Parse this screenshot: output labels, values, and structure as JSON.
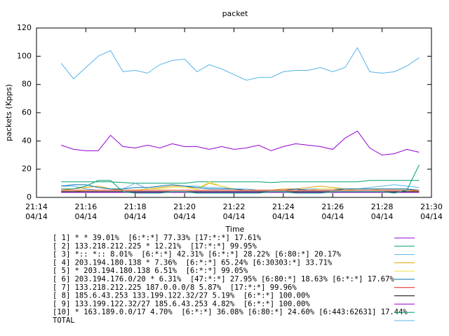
{
  "chart_data": {
    "type": "line",
    "title": "packet",
    "y_label": "packets (Kpps)",
    "x_label": "Time",
    "x": [
      "21:15:00",
      "21:15:30",
      "21:16:00",
      "21:16:30",
      "21:17:00",
      "21:17:30",
      "21:18:00",
      "21:18:30",
      "21:19:00",
      "21:19:30",
      "21:20:00",
      "21:20:30",
      "21:21:00",
      "21:21:30",
      "21:22:00",
      "21:22:30",
      "21:23:00",
      "21:23:30",
      "21:24:00",
      "21:24:30",
      "21:25:00",
      "21:25:30",
      "21:26:00",
      "21:26:30",
      "21:27:00",
      "21:27:30",
      "21:28:00",
      "21:28:30",
      "21:29:00",
      "21:29:30"
    ],
    "xlim": [
      "21:14:00",
      "21:30:00"
    ],
    "xticks": [
      {
        "value": "21:14:00",
        "label": "21:14",
        "date": "04/14"
      },
      {
        "value": "21:16:00",
        "label": "21:16",
        "date": "04/14"
      },
      {
        "value": "21:18:00",
        "label": "21:18",
        "date": "04/14"
      },
      {
        "value": "21:20:00",
        "label": "21:20",
        "date": "04/14"
      },
      {
        "value": "21:22:00",
        "label": "21:22",
        "date": "04/14"
      },
      {
        "value": "21:24:00",
        "label": "21:24",
        "date": "04/14"
      },
      {
        "value": "21:26:00",
        "label": "21:26",
        "date": "04/14"
      },
      {
        "value": "21:28:00",
        "label": "21:28",
        "date": "04/14"
      },
      {
        "value": "21:30:00",
        "label": "21:30",
        "date": "04/14"
      }
    ],
    "ylim": [
      0,
      120
    ],
    "yticks": [
      0,
      20,
      40,
      60,
      80,
      100,
      120
    ],
    "grid": false,
    "series": [
      {
        "name": "[ 1] * * 39.01%  [6:*:*] 77.33% [17:*:*] 17.61%",
        "color": "#9400d3",
        "values": [
          37,
          34,
          33,
          33,
          44,
          36,
          35,
          37,
          35,
          38,
          36,
          36,
          34,
          36,
          34,
          35,
          37,
          33,
          36,
          38,
          37,
          36,
          34,
          42,
          47,
          35,
          30,
          31,
          34,
          32
        ]
      },
      {
        "name": "[ 2] 133.218.212.225 * 12.21%  [17:*:*] 99.95%",
        "color": "#009e73",
        "values": [
          11,
          11,
          11,
          11,
          11,
          10.5,
          10,
          10,
          10,
          10,
          10,
          11,
          11,
          11,
          11,
          11,
          11,
          10.5,
          11,
          11,
          11,
          11,
          11,
          11,
          11,
          12,
          12,
          12,
          12,
          12
        ]
      },
      {
        "name": "[ 3] *:: *:: 8.01%  [6:*:*] 42.31% [6:*:*] 28.22% [6:80:*] 20.17%",
        "color": "#56b4e9",
        "values": [
          8,
          8,
          6,
          5,
          5,
          6,
          10,
          6,
          7,
          8,
          8,
          8,
          7,
          7,
          6,
          6,
          5,
          5,
          5,
          5,
          6,
          6,
          6,
          6,
          6,
          7,
          8,
          9,
          8,
          7
        ]
      },
      {
        "name": "[ 4] 203.194.180.138 * 7.36%  [6:*:*] 65.24% [6:30303:*] 33.71%",
        "color": "#e69f00",
        "values": [
          5,
          6,
          7,
          8,
          6,
          5,
          5,
          6,
          7,
          8,
          8,
          6,
          10,
          8,
          6,
          5,
          5,
          5,
          6,
          6,
          7,
          8,
          7,
          6,
          6,
          6,
          6,
          6,
          6,
          5
        ]
      },
      {
        "name": "[ 5] * 203.194.180.138 6.51%  [6:*:*] 99.05%",
        "color": "#f0e442",
        "values": [
          4,
          4,
          5,
          5,
          5,
          5,
          5,
          6,
          6,
          7,
          7,
          6,
          11,
          8,
          6,
          5,
          5,
          5,
          5,
          5,
          5,
          6,
          6,
          5,
          6,
          6,
          5,
          5,
          5,
          4
        ]
      },
      {
        "name": "[ 6] 203.194.176.0/20 * 6.31%  [47:*:*] 27.95% [6:80:*] 18.63% [6:*:*] 17.67%",
        "color": "#0072b2",
        "values": [
          8,
          9,
          9,
          7,
          6,
          6,
          7,
          7,
          8,
          9,
          8,
          7,
          6,
          6,
          6,
          5,
          5,
          5,
          5,
          6,
          5,
          5,
          5,
          6,
          6,
          6,
          6,
          6,
          6,
          5
        ]
      },
      {
        "name": "[ 7] 133.218.212.225 187.0.0.0/8 5.87%  [17:*:*] 99.96%",
        "color": "#e51e10",
        "values": [
          5,
          5,
          5,
          5,
          5,
          5,
          5,
          5,
          5,
          5,
          5,
          5,
          5,
          5,
          5,
          5,
          5,
          5,
          5,
          5,
          5,
          5,
          5,
          5,
          5,
          5,
          5,
          5,
          5,
          5
        ]
      },
      {
        "name": "[ 8] 185.6.43.253 133.199.122.32/27 5.19%  [6:*:*] 100.00%",
        "color": "#000000",
        "values": [
          4,
          4,
          4,
          4,
          4,
          4,
          4,
          4,
          4,
          4,
          4,
          4,
          4,
          4,
          4,
          4,
          4,
          4,
          4,
          4,
          4,
          4,
          4,
          4,
          4,
          4,
          4,
          4,
          4,
          4
        ]
      },
      {
        "name": "[ 9] 133.199.122.32/27 185.6.43.253 4.82%  [6:*:*] 100.00%",
        "color": "#9400d3",
        "values": [
          3.5,
          3.5,
          3.5,
          3.5,
          3.5,
          3.5,
          3.5,
          3.5,
          3.5,
          3.5,
          3.5,
          3.5,
          3.5,
          3.5,
          3.5,
          3.5,
          3.5,
          3.5,
          3.5,
          3.5,
          3.5,
          3.5,
          3.5,
          3.5,
          3.5,
          3.5,
          3.5,
          3.5,
          3.5,
          3.5
        ]
      },
      {
        "name": "[10] * 163.189.0.0/17 4.70%  [6:*:*] 36.08% [6:80:*] 24.60% [6:443:62631] 17.44%",
        "color": "#009e73",
        "values": [
          6,
          6,
          8,
          12,
          12,
          4,
          3,
          3,
          3,
          4,
          4,
          3,
          3,
          3,
          3,
          3,
          3,
          4,
          4,
          3,
          3,
          3,
          4,
          4,
          4,
          4,
          4,
          3,
          5,
          23
        ]
      },
      {
        "name": "TOTAL",
        "color": "#56b4e9",
        "values": [
          95,
          84,
          92,
          100,
          104,
          89,
          90,
          88,
          94,
          97,
          98,
          89,
          94,
          91,
          87,
          83,
          85,
          85,
          89,
          90,
          90,
          92,
          89,
          92,
          106,
          89,
          88,
          89,
          93,
          99
        ]
      }
    ]
  }
}
